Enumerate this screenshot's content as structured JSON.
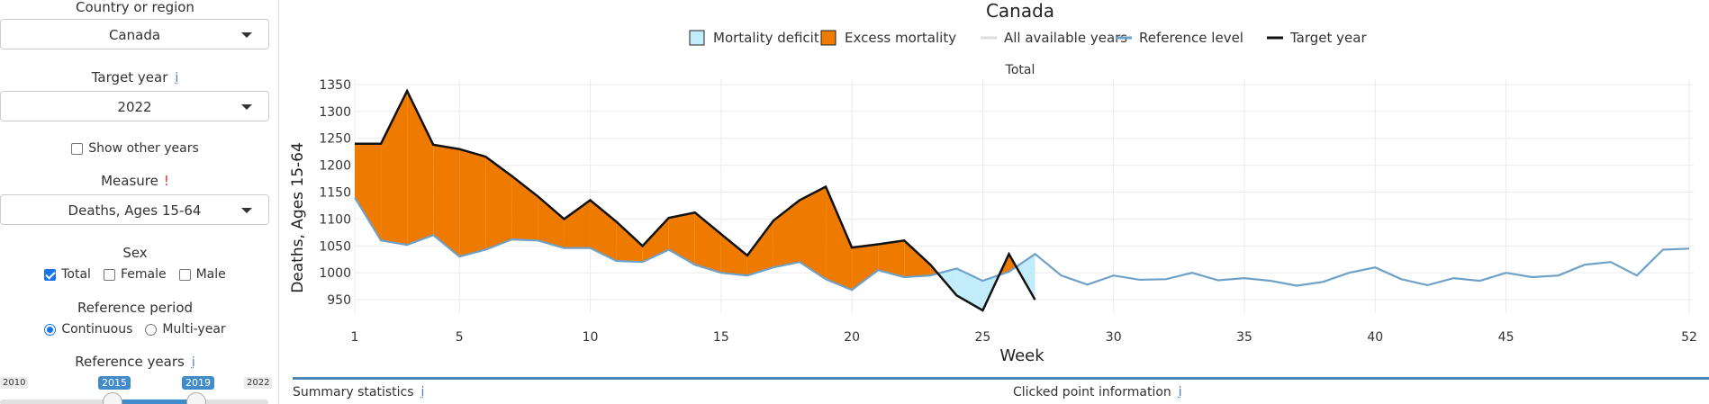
{
  "sidebar": {
    "country_label": "Country or region",
    "country_value": "Canada",
    "target_year_label": "Target year",
    "target_year_info": "i",
    "target_year_value": "2022",
    "show_other_years_label": "Show other years",
    "measure_label": "Measure",
    "measure_warn": "!",
    "measure_value": "Deaths, Ages 15-64",
    "sex_label": "Sex",
    "sex_options": [
      {
        "label": "Total",
        "checked": true
      },
      {
        "label": "Female",
        "checked": false
      },
      {
        "label": "Male",
        "checked": false
      }
    ],
    "ref_period_label": "Reference period",
    "ref_period_options": [
      {
        "label": "Continuous",
        "selected": true
      },
      {
        "label": "Multi-year",
        "selected": false
      }
    ],
    "ref_years_label": "Reference years",
    "ref_years_info": "i",
    "ref_years_min": "2010",
    "ref_years_max": "2022",
    "ref_years_from": "2015",
    "ref_years_to": "2019"
  },
  "chart_data": {
    "type": "area",
    "title": "Canada",
    "subtitle": "Total",
    "xlabel": "Week",
    "ylabel": "Deaths, Ages 15-64",
    "xlim": [
      1,
      52
    ],
    "ylim": [
      925,
      1360
    ],
    "x_ticks": [
      1,
      5,
      10,
      15,
      20,
      25,
      30,
      35,
      40,
      45,
      52
    ],
    "y_ticks": [
      950,
      1000,
      1050,
      1100,
      1150,
      1200,
      1250,
      1300,
      1350
    ],
    "grid": true,
    "legend_position": "top",
    "legend": [
      {
        "label": "Mortality deficit",
        "kind": "fill",
        "color": "#c2ecfa"
      },
      {
        "label": "Excess mortality",
        "kind": "fill",
        "color": "#ef7a00"
      },
      {
        "label": "All available years",
        "kind": "line",
        "color": "#dddddd"
      },
      {
        "label": "Reference level",
        "kind": "line",
        "color": "#6fa1c8"
      },
      {
        "label": "Target year",
        "kind": "line",
        "color": "#111111"
      }
    ],
    "series": [
      {
        "name": "Reference level",
        "x": [
          1,
          2,
          3,
          4,
          5,
          6,
          7,
          8,
          9,
          10,
          11,
          12,
          13,
          14,
          15,
          16,
          17,
          18,
          19,
          20,
          21,
          22,
          23,
          24,
          25,
          26,
          27,
          28,
          29,
          30,
          31,
          32,
          33,
          34,
          35,
          36,
          37,
          38,
          39,
          40,
          41,
          42,
          43,
          44,
          45,
          46,
          47,
          48,
          49,
          50,
          51,
          52
        ],
        "values": [
          1140,
          1060,
          1052,
          1070,
          1030,
          1043,
          1062,
          1060,
          1046,
          1046,
          1022,
          1020,
          1043,
          1015,
          1000,
          995,
          1010,
          1020,
          988,
          968,
          1005,
          992,
          995,
          1008,
          985,
          1002,
          1035,
          995,
          978,
          995,
          987,
          988,
          1000,
          986,
          990,
          985,
          976,
          983,
          1000,
          1010,
          988,
          977,
          990,
          985,
          1000,
          992,
          995,
          1015,
          1020,
          995,
          1043,
          1045
        ]
      },
      {
        "name": "Target year",
        "x": [
          1,
          2,
          3,
          4,
          5,
          6,
          7,
          8,
          9,
          10,
          11,
          12,
          13,
          14,
          15,
          16,
          17,
          18,
          19,
          20,
          21,
          22,
          23,
          24,
          25,
          26,
          27
        ],
        "values": [
          1240,
          1240,
          1338,
          1238,
          1230,
          1216,
          1180,
          1142,
          1100,
          1135,
          1095,
          1050,
          1102,
          1112,
          1072,
          1032,
          1097,
          1135,
          1160,
          1047,
          1053,
          1060,
          1015,
          958,
          930,
          1035,
          950
        ]
      }
    ]
  },
  "footer": {
    "summary_label": "Summary statistics",
    "summary_info": "i",
    "clicked_label": "Clicked point information",
    "clicked_info": "i"
  }
}
